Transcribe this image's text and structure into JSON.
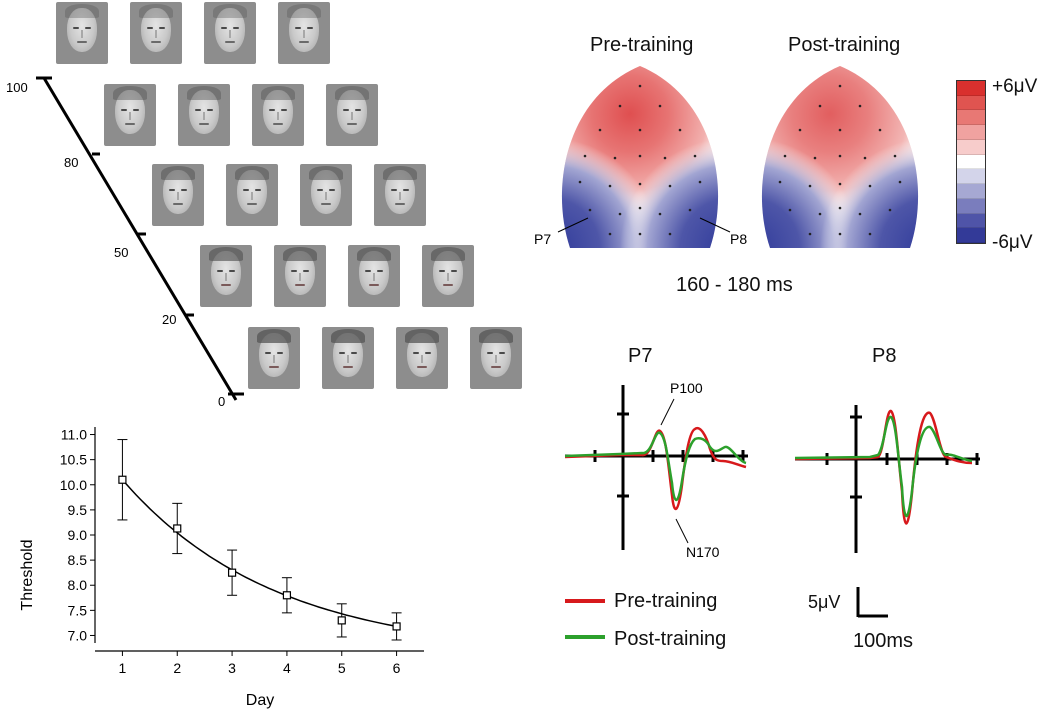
{
  "morph_scale": {
    "tick_labels": [
      "100",
      "80",
      "50",
      "20",
      "0"
    ],
    "rows": 5,
    "faces_per_row": 4,
    "face_icon": "face-image"
  },
  "topography": {
    "titles": [
      "Pre-training",
      "Post-training"
    ],
    "time_window": "160 - 180 ms",
    "electrode_labels": [
      "P7",
      "P8"
    ],
    "colorbar": {
      "max_label": "+6μV",
      "min_label": "-6μV",
      "colors": [
        "#d9302e",
        "#e05450",
        "#e87874",
        "#f0a2a0",
        "#f7cccb",
        "#ffffff",
        "#d3d4ea",
        "#a6a8d3",
        "#7a7dbd",
        "#4f54a8",
        "#333a98"
      ]
    }
  },
  "erp": {
    "panels": [
      "P7",
      "P8"
    ],
    "annotations": [
      "P100",
      "N170"
    ],
    "legend": [
      {
        "label": "Pre-training",
        "color": "#d7191c"
      },
      {
        "label": "Post-training",
        "color": "#2ca02c"
      }
    ],
    "scale_bar": {
      "amplitude": "5μV",
      "time": "100ms"
    }
  },
  "chart_data": {
    "type": "line",
    "x": [
      1,
      2,
      3,
      4,
      5,
      6
    ],
    "values": [
      10.1,
      9.13,
      8.25,
      7.8,
      7.3,
      7.18
    ],
    "error": [
      0.8,
      0.5,
      0.45,
      0.35,
      0.33,
      0.27
    ],
    "fit": "exponential decay",
    "xlabel": "Day",
    "ylabel": "Threshold",
    "xticks": [
      "1",
      "2",
      "3",
      "4",
      "5",
      "6"
    ],
    "yticks": [
      "7.0",
      "7.5",
      "8.0",
      "8.5",
      "9.0",
      "9.5",
      "10.0",
      "10.5",
      "11.0"
    ],
    "xlim": [
      0.5,
      6.5
    ],
    "ylim": [
      6.85,
      11.15
    ]
  }
}
